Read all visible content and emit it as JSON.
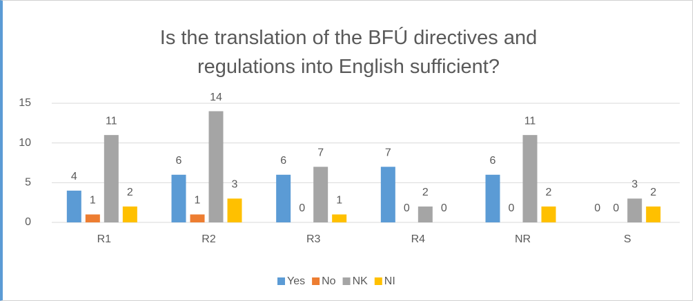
{
  "chart_data": {
    "type": "bar",
    "title": "Is the translation of the BFÚ directives and regulations into English sufficient?",
    "categories": [
      "R1",
      "R2",
      "R3",
      "R4",
      "NR",
      "S"
    ],
    "series": [
      {
        "name": "Yes",
        "color": "#5b9bd5",
        "values": [
          4,
          6,
          6,
          7,
          6,
          0
        ]
      },
      {
        "name": "No",
        "color": "#ed7d31",
        "values": [
          1,
          1,
          0,
          0,
          0,
          0
        ]
      },
      {
        "name": "NK",
        "color": "#a5a5a5",
        "values": [
          11,
          14,
          7,
          2,
          11,
          3
        ]
      },
      {
        "name": "NI",
        "color": "#ffc000",
        "values": [
          2,
          3,
          1,
          0,
          2,
          2
        ]
      }
    ],
    "ylim": [
      0,
      15
    ],
    "yticks": [
      0,
      5,
      10,
      15
    ],
    "grid": true,
    "legend": "bottom"
  }
}
